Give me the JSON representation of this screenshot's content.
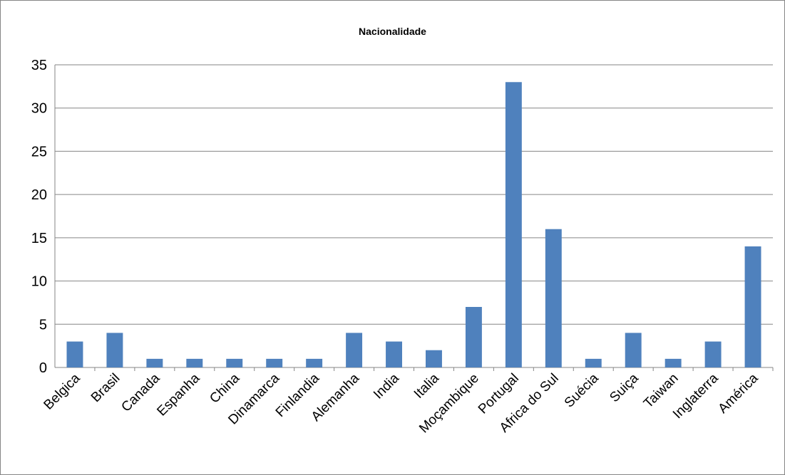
{
  "chart_data": {
    "type": "bar",
    "title": "Nacionalidade",
    "xlabel": "",
    "ylabel": "",
    "categories": [
      "Belgica",
      "Brasil",
      "Canada",
      "Espanha",
      "China",
      "Dinamarca",
      "Finlandia",
      "Alemanha",
      "India",
      "Italia",
      "Moçambique",
      "Portugal",
      "Africa do Sul",
      "Suécia",
      "Suiça",
      "Taiwan",
      "Inglaterra",
      "América"
    ],
    "values": [
      3,
      4,
      1,
      1,
      1,
      1,
      1,
      4,
      3,
      2,
      7,
      33,
      16,
      1,
      4,
      1,
      3,
      14
    ],
    "ylim": [
      0,
      35
    ],
    "yticks": [
      0,
      5,
      10,
      15,
      20,
      25,
      30,
      35
    ],
    "grid": true,
    "legend": "none",
    "bar_color": "#4f81bd",
    "gridline_color": "#868686"
  }
}
